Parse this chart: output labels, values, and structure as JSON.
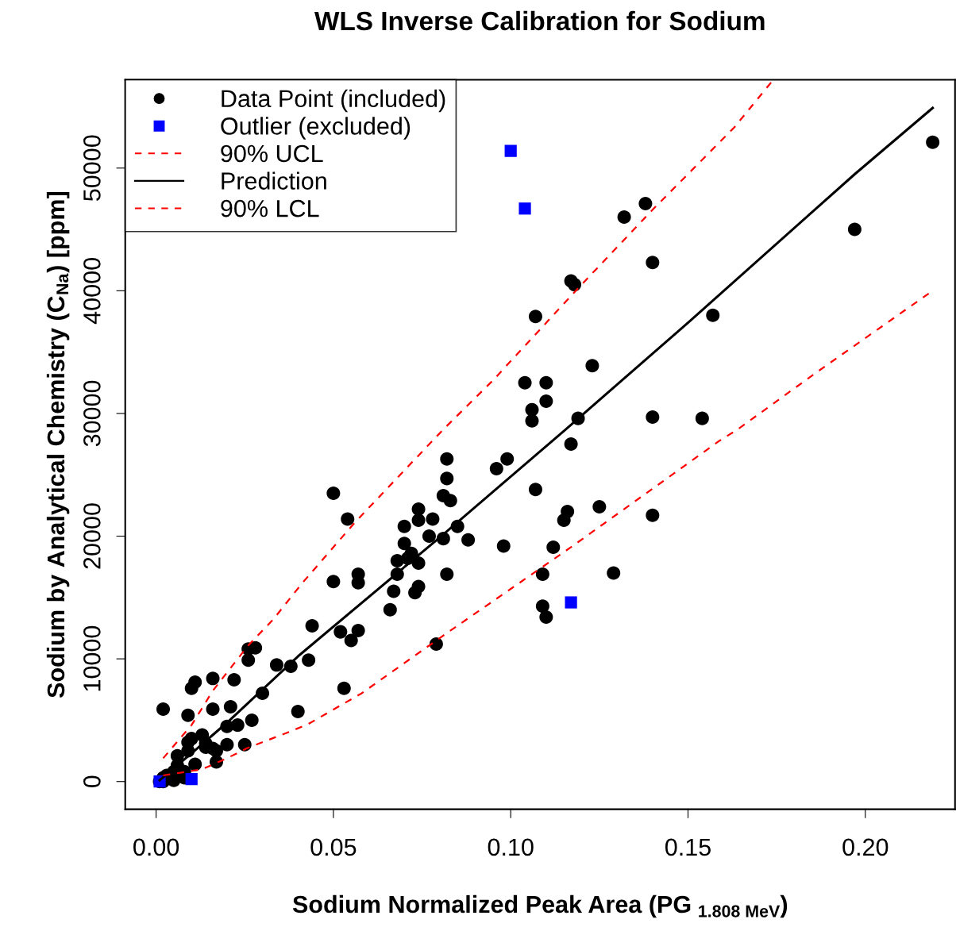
{
  "chart_data": {
    "type": "scatter",
    "title": "WLS Inverse Calibration for Sodium",
    "xlabel": "Sodium Normalized Peak Area (PG $_{1.808 MeV}$)",
    "ylabel": "Sodium by Analytical Chemistry (C$_{Na}$) [ppm]",
    "xlim": [
      -0.0087,
      0.2253
    ],
    "ylim": [
      -2260,
      57200
    ],
    "xticks": [
      {
        "value": 0,
        "label": "0.00"
      },
      {
        "value": 0.05,
        "label": "0.05"
      },
      {
        "value": 0.1,
        "label": "0.10"
      },
      {
        "value": 0.15,
        "label": "0.15"
      },
      {
        "value": 0.2,
        "label": "0.20"
      }
    ],
    "yticks": [
      0,
      10000,
      20000,
      30000,
      40000,
      50000
    ],
    "grid": false,
    "legend": "top left",
    "series": [
      {
        "name": "Data Point (included)",
        "marker": "circle",
        "color": "#000000",
        "x": [
          0.219,
          0.197,
          0.138,
          0.132,
          0.14,
          0.117,
          0.118,
          0.157,
          0.107,
          0.123,
          0.104,
          0.11,
          0.11,
          0.106,
          0.106,
          0.14,
          0.154,
          0.119,
          0.117,
          0.107,
          0.14,
          0.125,
          0.116,
          0.115,
          0.112,
          0.098,
          0.109,
          0.129,
          0.109,
          0.11,
          0.082,
          0.082,
          0.096,
          0.099,
          0.081,
          0.083,
          0.05,
          0.054,
          0.074,
          0.074,
          0.078,
          0.07,
          0.085,
          0.077,
          0.081,
          0.088,
          0.07,
          0.072,
          0.071,
          0.068,
          0.074,
          0.082,
          0.057,
          0.057,
          0.05,
          0.068,
          0.067,
          0.074,
          0.073,
          0.066,
          0.044,
          0.052,
          0.057,
          0.055,
          0.079,
          0.043,
          0.053,
          0.026,
          0.028,
          0.026,
          0.034,
          0.038,
          0.016,
          0.011,
          0.01,
          0.022,
          0.03,
          0.002,
          0.009,
          0.016,
          0.021,
          0.04,
          0.027,
          0.02,
          0.023,
          0.013,
          0.01,
          0.009,
          0.02,
          0.025,
          0.014,
          0.016,
          0.014,
          0.017,
          0.017,
          0.006,
          0.009,
          0.011,
          0.008,
          0.005,
          0.006,
          0.003,
          0.002,
          0.008,
          0.005,
          0.002,
          0.001
        ],
        "values": [
          52100,
          45000,
          47100,
          46000,
          42300,
          40800,
          40500,
          38000,
          37900,
          33900,
          32500,
          32500,
          31000,
          30300,
          29400,
          29700,
          29600,
          29600,
          27500,
          23800,
          21700,
          22400,
          22000,
          21300,
          19100,
          19200,
          16900,
          17000,
          14300,
          13400,
          26300,
          24700,
          25500,
          26300,
          23300,
          22900,
          23500,
          21400,
          22200,
          21300,
          21400,
          20800,
          20800,
          20000,
          19800,
          19700,
          19400,
          18600,
          18200,
          18000,
          17800,
          16900,
          16900,
          16200,
          16300,
          16900,
          15500,
          15900,
          15400,
          14000,
          12700,
          12200,
          12300,
          11500,
          11200,
          9900,
          7600,
          10800,
          10900,
          9900,
          9500,
          9400,
          8400,
          8100,
          7600,
          8300,
          7200,
          5900,
          5400,
          5900,
          6100,
          5700,
          5000,
          4500,
          4600,
          3800,
          3500,
          3200,
          3000,
          3000,
          3100,
          2700,
          2800,
          2500,
          1600,
          2100,
          2500,
          1400,
          800,
          800,
          1300,
          500,
          300,
          300,
          100,
          0,
          0
        ]
      },
      {
        "name": "Outlier (excluded)",
        "marker": "square",
        "color": "#0000ff",
        "x": [
          0.001,
          0.01,
          0.1,
          0.104,
          0.117
        ],
        "values": [
          0,
          200,
          51400,
          46700,
          14600
        ]
      },
      {
        "name": "90% UCL",
        "type": "line",
        "line_style": "dashed",
        "color": "#ff0000",
        "x": [
          0.002,
          0.01,
          0.016,
          0.026,
          0.033,
          0.041,
          0.056,
          0.081,
          0.095,
          0.119,
          0.14,
          0.163,
          0.1735
        ],
        "values": [
          1900,
          4600,
          7400,
          11100,
          13200,
          16100,
          21100,
          28700,
          32700,
          40200,
          46600,
          53300,
          57000
        ]
      },
      {
        "name": "Prediction",
        "type": "line",
        "line_style": "solid",
        "color": "#000000",
        "x": [
          0.001,
          0.01,
          0.02,
          0.04,
          0.08,
          0.1155,
          0.15,
          0.197,
          0.219
        ],
        "values": [
          100,
          2300,
          4800,
          10200,
          19900,
          28700,
          37400,
          49500,
          54900
        ]
      },
      {
        "name": "90% LCL",
        "type": "line",
        "line_style": "dashed",
        "color": "#ff0000",
        "x": [
          0.002,
          0.013,
          0.02,
          0.0255,
          0.038,
          0.043,
          0.058,
          0.0805,
          0.1065,
          0.117,
          0.159,
          0.164,
          0.186,
          0.218
        ],
        "values": [
          500,
          1000,
          1900,
          2700,
          4100,
          4700,
          7200,
          11800,
          17000,
          19100,
          27800,
          28700,
          33300,
          39800
        ]
      }
    ]
  }
}
